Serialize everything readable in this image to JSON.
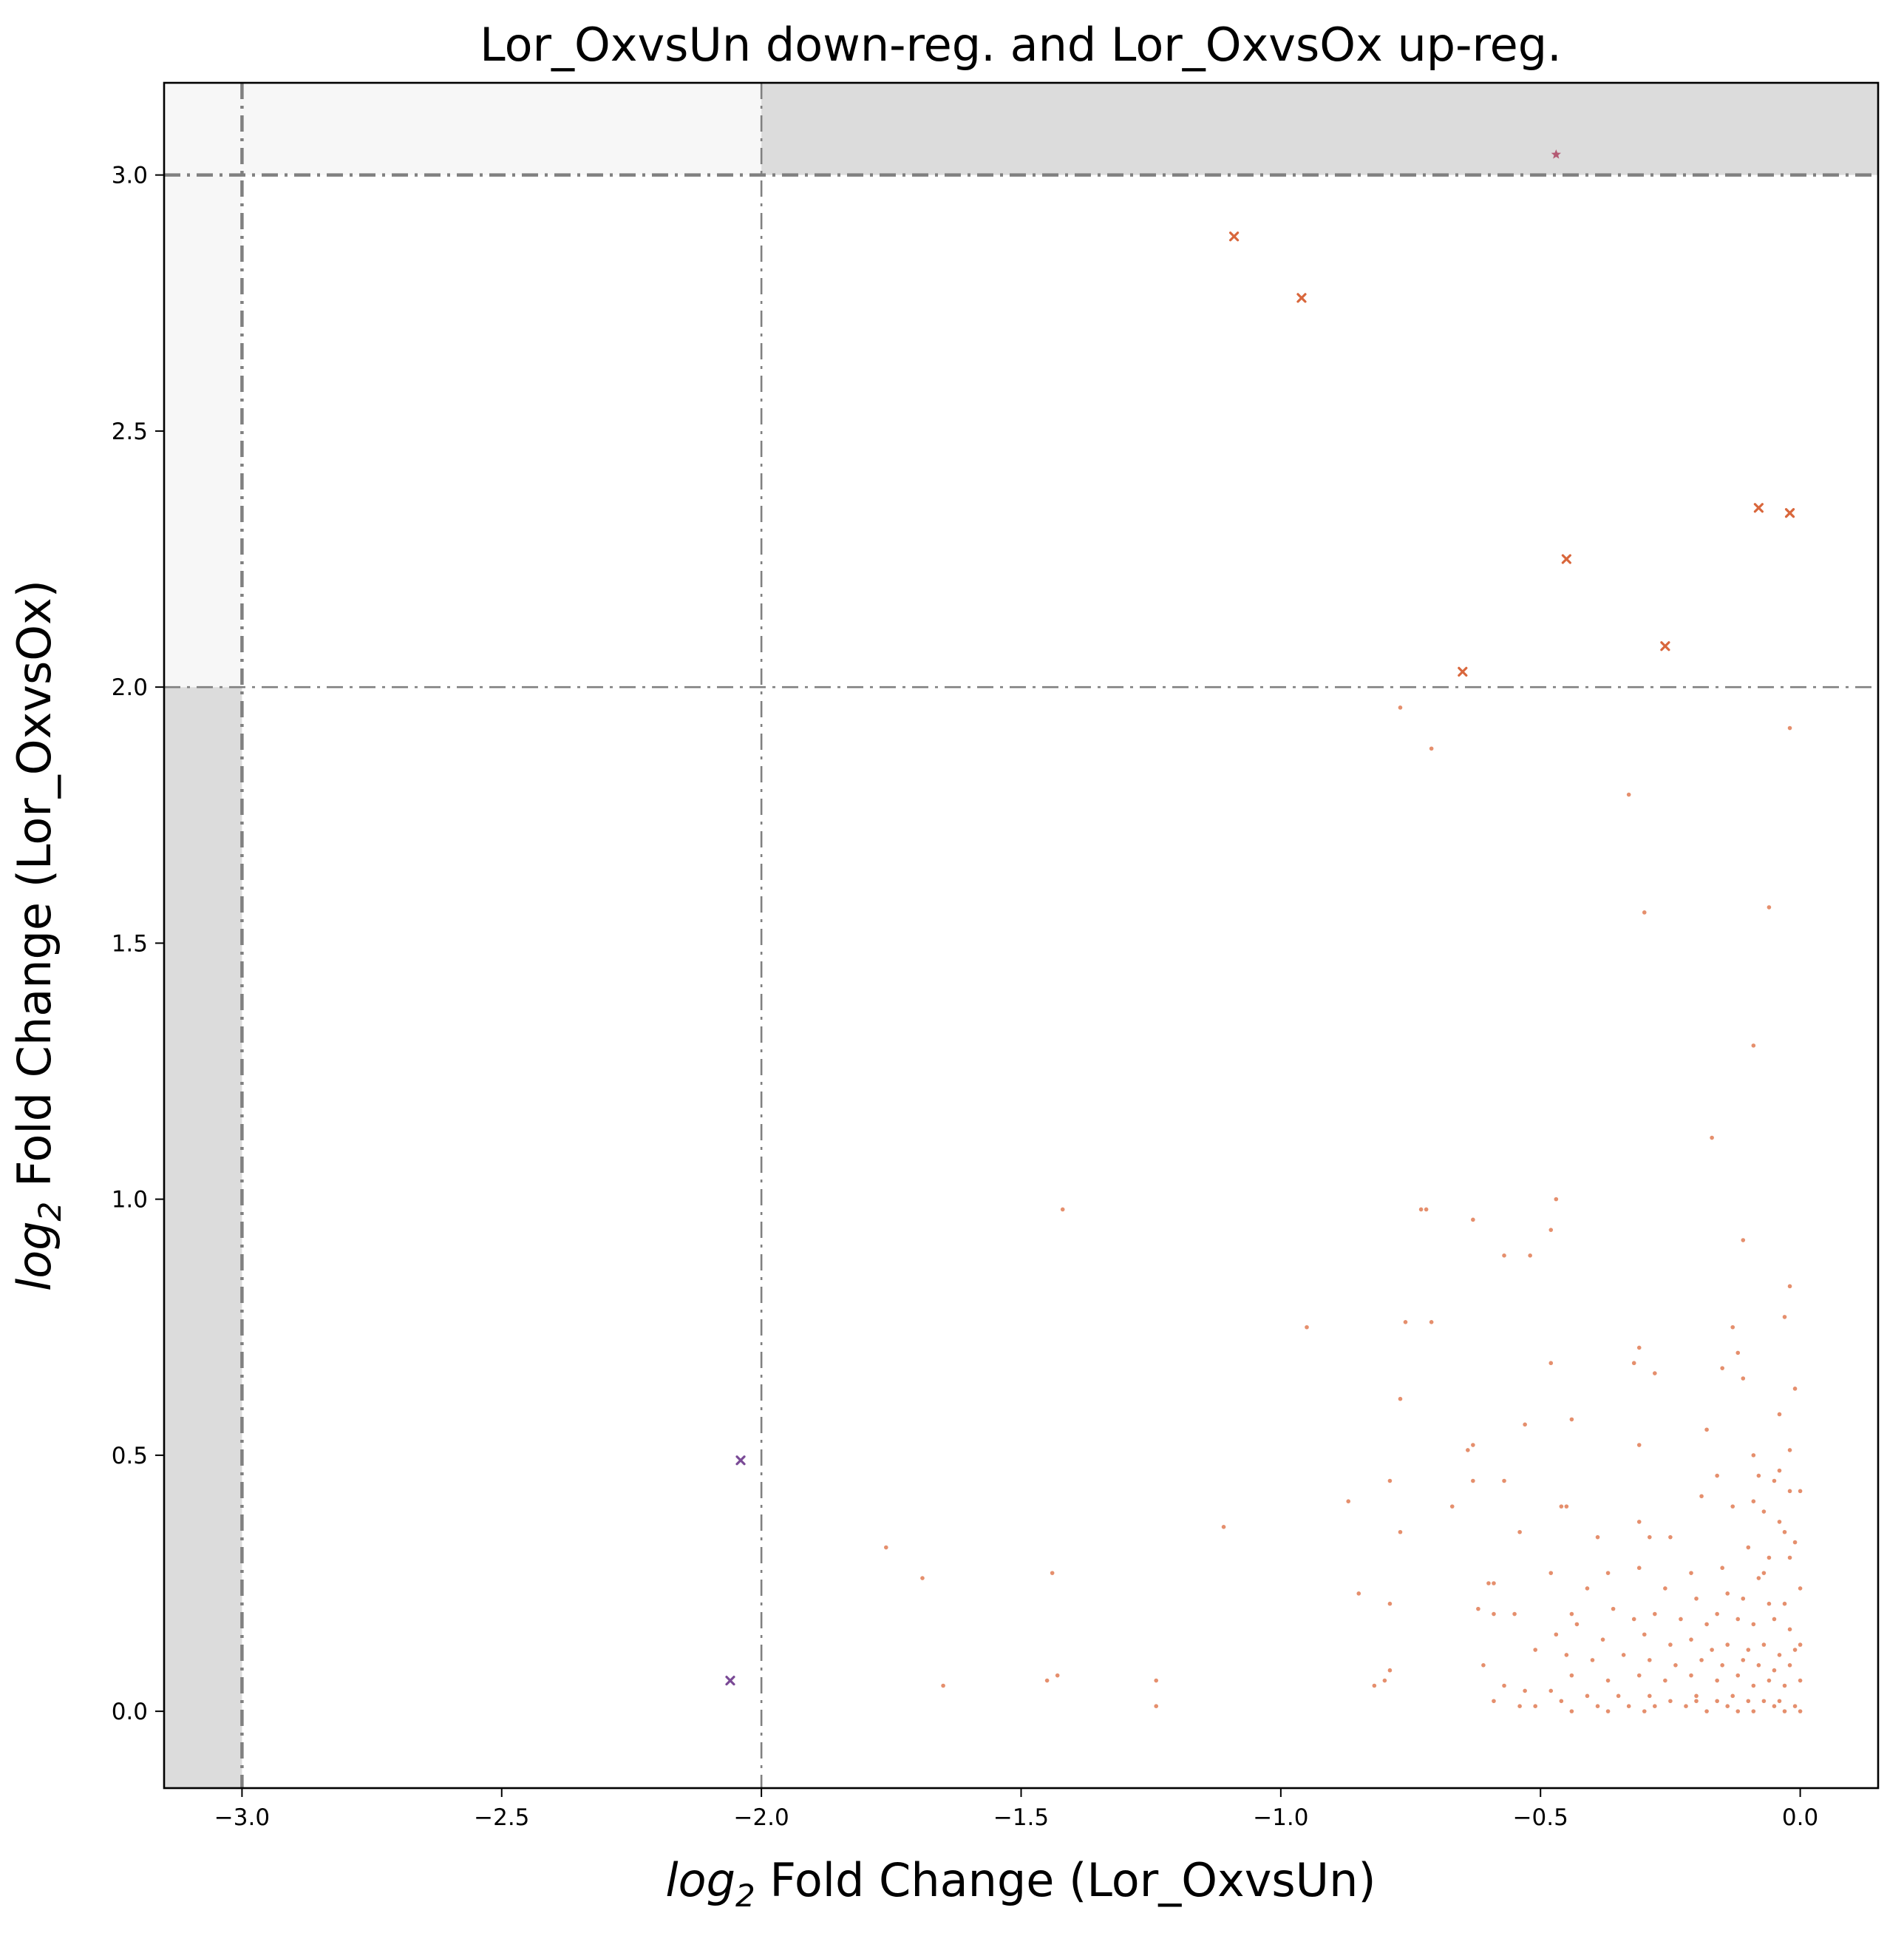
{
  "chart_data": {
    "type": "scatter",
    "title": "Lor_OxvsUn down-reg. and Lor_OxvsOx up-reg.",
    "xlabel_prefix": "log",
    "xlabel_subscript": "2",
    "xlabel_rest": " Fold Change (Lor_OxvsUn)",
    "ylabel_prefix": "log",
    "ylabel_subscript": "2",
    "ylabel_rest": " Fold Change (Lor_OxvsOx)",
    "xlim": [
      -3.15,
      0.15
    ],
    "ylim": [
      -0.15,
      3.18
    ],
    "xticks": [
      -3.0,
      -2.5,
      -2.0,
      -1.5,
      -1.0,
      -0.5,
      0.0
    ],
    "xtick_labels": [
      "−3.0",
      "−2.5",
      "−2.0",
      "−1.5",
      "−1.0",
      "−0.5",
      "0.0"
    ],
    "yticks": [
      0.0,
      0.5,
      1.0,
      1.5,
      2.0,
      2.5,
      3.0
    ],
    "ytick_labels": [
      "0.0",
      "0.5",
      "1.0",
      "1.5",
      "2.0",
      "2.5",
      "3.0"
    ],
    "grid": false,
    "legend": "none",
    "threshold_lines": {
      "x": [
        -3.0,
        -2.0
      ],
      "y": [
        2.0,
        3.0
      ]
    },
    "shaded_regions": [
      {
        "x": [
          -3.15,
          -3.0
        ],
        "y": [
          -0.15,
          2.0
        ],
        "color": "#dcdcdc"
      },
      {
        "x": [
          -3.15,
          -3.0
        ],
        "y": [
          2.0,
          3.18
        ],
        "color": "#f7f7f7"
      },
      {
        "x": [
          -3.0,
          -2.0
        ],
        "y": [
          3.0,
          3.18
        ],
        "color": "#f7f7f7"
      },
      {
        "x": [
          -2.0,
          0.15
        ],
        "y": [
          3.0,
          3.18
        ],
        "color": "#dcdcdc"
      }
    ],
    "colors": {
      "star": "#b35a73",
      "cross_orange": "#d9673c",
      "cross_purple": "#7a4a96",
      "dot": "#e07b54",
      "threshold": "#808080"
    },
    "series": [
      {
        "marker": "star",
        "color": "#b35a73",
        "points": [
          [
            -0.47,
            3.04
          ]
        ]
      },
      {
        "marker": "cross",
        "color": "#d9673c",
        "points": [
          [
            -1.09,
            2.88
          ],
          [
            -0.96,
            2.76
          ],
          [
            -0.08,
            2.35
          ],
          [
            -0.02,
            2.34
          ],
          [
            -0.45,
            2.25
          ],
          [
            -0.26,
            2.08
          ],
          [
            -0.65,
            2.03
          ]
        ]
      },
      {
        "marker": "cross",
        "color": "#7a4a96",
        "points": [
          [
            -2.04,
            0.49
          ],
          [
            -2.06,
            0.06
          ]
        ]
      },
      {
        "marker": "dot",
        "color": "#e07b54",
        "points": [
          [
            -0.77,
            1.96
          ],
          [
            -0.71,
            1.88
          ],
          [
            -0.02,
            1.92
          ],
          [
            -0.33,
            1.79
          ],
          [
            -0.3,
            1.56
          ],
          [
            -0.06,
            1.57
          ],
          [
            -0.09,
            1.3
          ],
          [
            -0.17,
            1.12
          ],
          [
            -1.42,
            0.98
          ],
          [
            -0.73,
            0.98
          ],
          [
            -0.72,
            0.98
          ],
          [
            -0.47,
            1.0
          ],
          [
            -0.63,
            0.96
          ],
          [
            -0.48,
            0.94
          ],
          [
            -0.11,
            0.92
          ],
          [
            -0.57,
            0.89
          ],
          [
            -0.52,
            0.89
          ],
          [
            -0.02,
            0.83
          ],
          [
            -0.03,
            0.77
          ],
          [
            -0.95,
            0.75
          ],
          [
            -0.76,
            0.76
          ],
          [
            -0.71,
            0.76
          ],
          [
            -0.13,
            0.75
          ],
          [
            -0.12,
            0.7
          ],
          [
            -0.31,
            0.71
          ],
          [
            -0.48,
            0.68
          ],
          [
            -0.32,
            0.68
          ],
          [
            -0.28,
            0.66
          ],
          [
            -0.15,
            0.67
          ],
          [
            -0.11,
            0.65
          ],
          [
            -0.01,
            0.63
          ],
          [
            -0.77,
            0.61
          ],
          [
            -0.04,
            0.58
          ],
          [
            -0.44,
            0.57
          ],
          [
            -0.53,
            0.56
          ],
          [
            -0.18,
            0.55
          ],
          [
            -0.63,
            0.52
          ],
          [
            -0.64,
            0.51
          ],
          [
            -0.31,
            0.52
          ],
          [
            -0.02,
            0.51
          ],
          [
            -0.09,
            0.5
          ],
          [
            -0.04,
            0.47
          ],
          [
            -0.79,
            0.45
          ],
          [
            -0.63,
            0.45
          ],
          [
            -0.57,
            0.45
          ],
          [
            -0.16,
            0.46
          ],
          [
            -0.08,
            0.46
          ],
          [
            -0.05,
            0.45
          ],
          [
            -0.02,
            0.43
          ],
          [
            0.0,
            0.43
          ],
          [
            -0.19,
            0.42
          ],
          [
            -0.09,
            0.41
          ],
          [
            -0.87,
            0.41
          ],
          [
            -0.67,
            0.4
          ],
          [
            -0.46,
            0.4
          ],
          [
            -0.45,
            0.4
          ],
          [
            -0.13,
            0.4
          ],
          [
            -0.07,
            0.39
          ],
          [
            -1.11,
            0.36
          ],
          [
            -0.77,
            0.35
          ],
          [
            -0.54,
            0.35
          ],
          [
            -0.31,
            0.37
          ],
          [
            -0.04,
            0.37
          ],
          [
            -0.03,
            0.35
          ],
          [
            -0.01,
            0.33
          ],
          [
            -1.76,
            0.32
          ],
          [
            -0.39,
            0.34
          ],
          [
            -0.29,
            0.34
          ],
          [
            -0.25,
            0.34
          ],
          [
            -0.1,
            0.32
          ],
          [
            -0.06,
            0.3
          ],
          [
            -0.02,
            0.3
          ],
          [
            -0.07,
            0.27
          ],
          [
            -0.08,
            0.26
          ],
          [
            -0.15,
            0.28
          ],
          [
            -0.21,
            0.27
          ],
          [
            -0.31,
            0.28
          ],
          [
            -0.37,
            0.27
          ],
          [
            -0.48,
            0.27
          ],
          [
            -1.44,
            0.27
          ],
          [
            -1.69,
            0.26
          ],
          [
            -0.6,
            0.25
          ],
          [
            -0.59,
            0.25
          ],
          [
            -0.41,
            0.24
          ],
          [
            -0.26,
            0.24
          ],
          [
            -0.2,
            0.22
          ],
          [
            -0.14,
            0.23
          ],
          [
            -0.11,
            0.22
          ],
          [
            -0.06,
            0.21
          ],
          [
            -0.03,
            0.21
          ],
          [
            0.0,
            0.24
          ],
          [
            -0.85,
            0.23
          ],
          [
            -0.79,
            0.21
          ],
          [
            -0.62,
            0.2
          ],
          [
            -0.59,
            0.19
          ],
          [
            -0.55,
            0.19
          ],
          [
            -0.44,
            0.19
          ],
          [
            -0.36,
            0.2
          ],
          [
            -0.32,
            0.18
          ],
          [
            -0.28,
            0.19
          ],
          [
            -0.23,
            0.18
          ],
          [
            -0.18,
            0.17
          ],
          [
            -0.16,
            0.19
          ],
          [
            -0.12,
            0.18
          ],
          [
            -0.09,
            0.17
          ],
          [
            -0.05,
            0.18
          ],
          [
            -0.02,
            0.16
          ],
          [
            -0.43,
            0.17
          ],
          [
            -0.47,
            0.15
          ],
          [
            -0.38,
            0.14
          ],
          [
            -0.3,
            0.15
          ],
          [
            -0.25,
            0.13
          ],
          [
            -0.21,
            0.14
          ],
          [
            -0.17,
            0.12
          ],
          [
            -0.14,
            0.13
          ],
          [
            -0.1,
            0.12
          ],
          [
            -0.07,
            0.13
          ],
          [
            -0.04,
            0.11
          ],
          [
            -0.01,
            0.12
          ],
          [
            0.0,
            0.13
          ],
          [
            -0.51,
            0.12
          ],
          [
            -0.45,
            0.11
          ],
          [
            -0.4,
            0.1
          ],
          [
            -0.34,
            0.11
          ],
          [
            -0.29,
            0.1
          ],
          [
            -0.24,
            0.09
          ],
          [
            -0.19,
            0.1
          ],
          [
            -0.15,
            0.09
          ],
          [
            -0.11,
            0.1
          ],
          [
            -0.08,
            0.09
          ],
          [
            -0.05,
            0.08
          ],
          [
            -0.02,
            0.09
          ],
          [
            -0.61,
            0.09
          ],
          [
            -0.79,
            0.08
          ],
          [
            -0.8,
            0.06
          ],
          [
            -0.82,
            0.05
          ],
          [
            -0.44,
            0.07
          ],
          [
            -0.37,
            0.06
          ],
          [
            -0.31,
            0.07
          ],
          [
            -0.26,
            0.06
          ],
          [
            -0.21,
            0.07
          ],
          [
            -0.16,
            0.06
          ],
          [
            -0.12,
            0.07
          ],
          [
            -0.09,
            0.05
          ],
          [
            -0.06,
            0.06
          ],
          [
            -0.03,
            0.05
          ],
          [
            0.0,
            0.06
          ],
          [
            -0.57,
            0.05
          ],
          [
            -0.53,
            0.04
          ],
          [
            -0.48,
            0.04
          ],
          [
            -1.43,
            0.07
          ],
          [
            -1.45,
            0.06
          ],
          [
            -1.65,
            0.05
          ],
          [
            -1.24,
            0.06
          ],
          [
            -0.41,
            0.03
          ],
          [
            -0.35,
            0.03
          ],
          [
            -0.29,
            0.03
          ],
          [
            -0.25,
            0.02
          ],
          [
            -0.2,
            0.03
          ],
          [
            -0.16,
            0.02
          ],
          [
            -0.13,
            0.03
          ],
          [
            -0.1,
            0.02
          ],
          [
            -0.07,
            0.02
          ],
          [
            -0.04,
            0.02
          ],
          [
            -0.01,
            0.01
          ],
          [
            -0.59,
            0.02
          ],
          [
            -0.54,
            0.01
          ],
          [
            -0.46,
            0.02
          ],
          [
            -1.24,
            0.01
          ],
          [
            -0.44,
            0.0
          ],
          [
            -0.39,
            0.01
          ],
          [
            -0.37,
            0.0
          ],
          [
            -0.33,
            0.01
          ],
          [
            -0.28,
            0.01
          ],
          [
            -0.22,
            0.01
          ],
          [
            -0.18,
            0.0
          ],
          [
            -0.14,
            0.01
          ],
          [
            -0.09,
            0.0
          ],
          [
            -0.05,
            0.01
          ],
          [
            -0.03,
            0.0
          ],
          [
            0.0,
            0.0
          ],
          [
            -0.51,
            0.01
          ],
          [
            -0.3,
            0.0
          ],
          [
            -0.2,
            0.02
          ],
          [
            -0.12,
            0.0
          ]
        ]
      }
    ]
  }
}
